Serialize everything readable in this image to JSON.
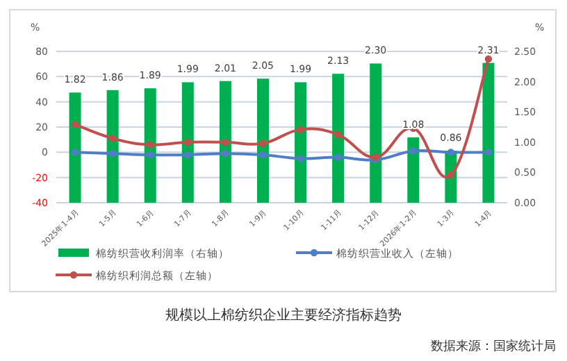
{
  "chart_data": {
    "type": "bar",
    "title": "规模以上棉纺织企业主要经济指标趋势",
    "annotations": [
      "数据来源：国家统计局"
    ],
    "ylabel": "%",
    "y2label": "%",
    "categories": [
      "2025年1-4月",
      "1-5月",
      "1-6月",
      "1-7月",
      "1-8月",
      "1-9月",
      "1-10月",
      "1-11月",
      "1-12月",
      "2026年1-2月",
      "1-3月",
      "1-4月"
    ],
    "series": [
      {
        "name": "棉纺织营收利润率（右轴）",
        "axis": "y2",
        "color": "#00b050",
        "values": [
          1.82,
          1.86,
          1.89,
          1.99,
          2.01,
          2.05,
          1.99,
          2.13,
          2.3,
          1.08,
          0.86,
          2.31
        ],
        "value_labels": [
          "1.82",
          "1.86",
          "1.89",
          "1.99",
          "2.01",
          "2.05",
          "1.99",
          "2.13",
          "2.30",
          "1.08",
          "0.86",
          "2.31"
        ]
      },
      {
        "name": "棉纺织营业收入（左轴）",
        "type": "line",
        "axis": "y",
        "color": "#4f7ec4",
        "marker": "circle",
        "values": [
          0,
          -1,
          -2,
          -2,
          -1,
          -2,
          -5,
          -4,
          -6,
          1,
          0,
          0
        ]
      },
      {
        "name": "棉纺织利润总额（左轴）",
        "type": "line",
        "axis": "y",
        "color": "#c0504d",
        "marker": "circle",
        "values": [
          22,
          11,
          6,
          8,
          8,
          7,
          18,
          14,
          -4,
          19,
          -18,
          74
        ]
      }
    ],
    "ylim": [
      -40,
      80
    ],
    "yticks": [
      -40,
      -20,
      0,
      20,
      40,
      60,
      80
    ],
    "y2lim": [
      0,
      2.5
    ],
    "y2ticks": [
      {
        "value": 0,
        "label": "0.00"
      },
      {
        "value": 0.5,
        "label": "0.50"
      },
      {
        "value": 1,
        "label": "1.00"
      },
      {
        "value": 1.5,
        "label": "1.50"
      },
      {
        "value": 2,
        "label": "2.00"
      },
      {
        "value": 2.5,
        "label": "2.50"
      }
    ],
    "grid": "y",
    "legend": "bottom"
  }
}
